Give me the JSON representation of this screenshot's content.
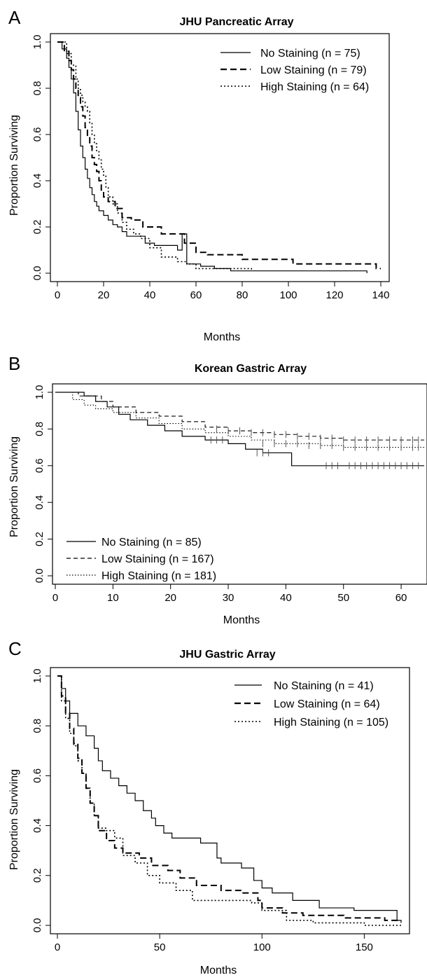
{
  "chart_data": [
    {
      "type": "line",
      "panel_label": "A",
      "title": "JHU Pancreatic Array",
      "xlabel": "Months",
      "ylabel": "Proportion Surviving",
      "xlim": [
        0,
        140
      ],
      "ylim": [
        0,
        1
      ],
      "xticks": [
        0,
        20,
        40,
        60,
        80,
        100,
        120,
        140
      ],
      "yticks": [
        0.0,
        0.2,
        0.4,
        0.6,
        0.8,
        1.0
      ],
      "xtick_labels": [
        "0",
        "20",
        "40",
        "60",
        "80",
        "100",
        "120",
        "140"
      ],
      "ytick_labels": [
        "0.0",
        "0.2",
        "0.4",
        "0.6",
        "0.8",
        "1.0"
      ],
      "legend_position": "top-right",
      "series": [
        {
          "name": "No Staining (n = 75)",
          "style": "solid",
          "x": [
            0,
            2,
            4,
            5,
            6,
            7,
            8,
            9,
            10,
            11,
            12,
            13,
            14,
            15,
            16,
            17,
            18,
            20,
            22,
            24,
            26,
            28,
            30,
            32,
            38,
            42,
            45,
            52,
            54,
            56,
            62,
            68,
            75,
            134
          ],
          "y": [
            1.0,
            0.97,
            0.93,
            0.89,
            0.84,
            0.78,
            0.7,
            0.62,
            0.55,
            0.5,
            0.45,
            0.41,
            0.37,
            0.34,
            0.31,
            0.29,
            0.27,
            0.25,
            0.23,
            0.21,
            0.2,
            0.18,
            0.16,
            0.16,
            0.13,
            0.12,
            0.12,
            0.1,
            0.17,
            0.04,
            0.03,
            0.02,
            0.01,
            0.0
          ]
        },
        {
          "name": "Low Staining (n = 79)",
          "style": "dashed",
          "x": [
            0,
            3,
            5,
            6,
            7,
            8,
            9,
            10,
            11,
            12,
            13,
            14,
            15,
            16,
            17,
            18,
            19,
            20,
            22,
            25,
            28,
            32,
            37,
            45,
            55,
            60,
            65,
            80,
            102,
            138,
            140
          ],
          "y": [
            1.0,
            0.96,
            0.92,
            0.88,
            0.84,
            0.8,
            0.76,
            0.72,
            0.68,
            0.63,
            0.59,
            0.55,
            0.5,
            0.47,
            0.44,
            0.4,
            0.36,
            0.33,
            0.31,
            0.28,
            0.24,
            0.23,
            0.2,
            0.17,
            0.13,
            0.09,
            0.08,
            0.06,
            0.04,
            0.02,
            0.02
          ]
        },
        {
          "name": "High Staining (n = 64)",
          "style": "dotted",
          "x": [
            0,
            4,
            6,
            8,
            9,
            10,
            11,
            12,
            13,
            14,
            15,
            16,
            17,
            18,
            19,
            20,
            21,
            22,
            24,
            26,
            28,
            30,
            33,
            36,
            40,
            45,
            52,
            56,
            60,
            64,
            84
          ],
          "y": [
            1.0,
            0.95,
            0.9,
            0.84,
            0.8,
            0.77,
            0.74,
            0.72,
            0.7,
            0.65,
            0.6,
            0.56,
            0.53,
            0.49,
            0.45,
            0.42,
            0.37,
            0.33,
            0.3,
            0.26,
            0.22,
            0.19,
            0.17,
            0.15,
            0.11,
            0.07,
            0.05,
            0.04,
            0.02,
            0.02,
            0.01
          ]
        }
      ]
    },
    {
      "type": "line",
      "panel_label": "B",
      "title": "Korean Gastric Array",
      "xlabel": "Months",
      "ylabel": "Proportion Surviving",
      "xlim": [
        0,
        64
      ],
      "ylim": [
        0,
        1
      ],
      "xticks": [
        0,
        10,
        20,
        30,
        40,
        50,
        60
      ],
      "yticks": [
        0.0,
        0.2,
        0.4,
        0.6,
        0.8,
        1.0
      ],
      "xtick_labels": [
        "0",
        "10",
        "20",
        "30",
        "40",
        "50",
        "60"
      ],
      "ytick_labels": [
        "0.0",
        "0.2",
        "0.4",
        "0.6",
        "0.8",
        "1.0"
      ],
      "legend_position": "bottom-left",
      "series": [
        {
          "name": "No Staining (n = 85)",
          "style": "solid",
          "x": [
            0,
            5,
            7,
            9,
            11,
            13,
            16,
            19,
            22,
            26,
            30,
            33,
            36,
            41,
            64
          ],
          "y": [
            1.0,
            0.98,
            0.95,
            0.92,
            0.88,
            0.85,
            0.82,
            0.79,
            0.76,
            0.74,
            0.72,
            0.69,
            0.67,
            0.6,
            0.6
          ],
          "censor_x": [
            27,
            28,
            29,
            35,
            36,
            37,
            47,
            48,
            49,
            51,
            52,
            53,
            54,
            55,
            56,
            57,
            58,
            59,
            60,
            61,
            62,
            63
          ],
          "censor_y": [
            0.74,
            0.74,
            0.74,
            0.67,
            0.67,
            0.67,
            0.6,
            0.6,
            0.6,
            0.6,
            0.6,
            0.6,
            0.6,
            0.6,
            0.6,
            0.6,
            0.6,
            0.6,
            0.6,
            0.6,
            0.6,
            0.6
          ]
        },
        {
          "name": "Low Staining (n = 167)",
          "style": "dashed",
          "x": [
            0,
            4,
            8,
            10,
            14,
            18,
            22,
            26,
            30,
            34,
            38,
            42,
            46,
            50,
            64
          ],
          "y": [
            1.0,
            0.98,
            0.95,
            0.92,
            0.89,
            0.87,
            0.84,
            0.81,
            0.79,
            0.78,
            0.77,
            0.76,
            0.75,
            0.74,
            0.74
          ],
          "censor_x": [
            28,
            30,
            32,
            34,
            36,
            38,
            40,
            42,
            44,
            46,
            48,
            50,
            52,
            54,
            56,
            58,
            60,
            62,
            63
          ],
          "censor_y": [
            0.8,
            0.79,
            0.79,
            0.78,
            0.78,
            0.77,
            0.77,
            0.76,
            0.76,
            0.75,
            0.75,
            0.74,
            0.74,
            0.74,
            0.74,
            0.74,
            0.74,
            0.74,
            0.74
          ]
        },
        {
          "name": "High Staining (n = 181)",
          "style": "dotted",
          "x": [
            0,
            3,
            5,
            7,
            10,
            14,
            18,
            22,
            26,
            30,
            34,
            38,
            42,
            46,
            50,
            64
          ],
          "y": [
            1.0,
            0.96,
            0.93,
            0.91,
            0.89,
            0.86,
            0.83,
            0.8,
            0.78,
            0.76,
            0.74,
            0.72,
            0.72,
            0.71,
            0.7,
            0.7
          ],
          "censor_x": [
            36,
            38,
            40,
            42,
            44,
            46,
            48,
            50,
            52,
            54,
            56,
            58,
            60,
            62,
            63
          ],
          "censor_y": [
            0.72,
            0.72,
            0.72,
            0.72,
            0.71,
            0.71,
            0.71,
            0.7,
            0.7,
            0.7,
            0.7,
            0.7,
            0.7,
            0.7,
            0.7
          ]
        }
      ]
    },
    {
      "type": "line",
      "panel_label": "C",
      "title": "JHU Gastric Array",
      "xlabel": "Months",
      "ylabel": "Proportion Surviving",
      "xlim": [
        0,
        168
      ],
      "ylim": [
        0,
        1
      ],
      "xticks": [
        0,
        50,
        100,
        150
      ],
      "yticks": [
        0.0,
        0.2,
        0.4,
        0.6,
        0.8,
        1.0
      ],
      "xtick_labels": [
        "0",
        "50",
        "100",
        "150"
      ],
      "ytick_labels": [
        "0.0",
        "0.2",
        "0.4",
        "0.6",
        "0.8",
        "1.0"
      ],
      "legend_position": "top-right",
      "series": [
        {
          "name": "No Staining (n = 41)",
          "style": "solid",
          "x": [
            0,
            2,
            4,
            6,
            10,
            14,
            18,
            20,
            22,
            26,
            30,
            34,
            38,
            42,
            46,
            48,
            52,
            56,
            62,
            70,
            78,
            80,
            90,
            96,
            100,
            105,
            115,
            128,
            145,
            166,
            168
          ],
          "y": [
            1.0,
            0.95,
            0.9,
            0.85,
            0.8,
            0.76,
            0.71,
            0.66,
            0.62,
            0.59,
            0.56,
            0.53,
            0.5,
            0.46,
            0.43,
            0.4,
            0.37,
            0.35,
            0.35,
            0.33,
            0.27,
            0.25,
            0.23,
            0.18,
            0.15,
            0.13,
            0.1,
            0.07,
            0.06,
            0.02,
            0.01
          ]
        },
        {
          "name": "Low Staining (n = 64)",
          "style": "dashed",
          "x": [
            0,
            2,
            4,
            6,
            8,
            10,
            12,
            14,
            16,
            18,
            20,
            24,
            28,
            32,
            40,
            46,
            54,
            60,
            68,
            80,
            90,
            98,
            100,
            110,
            120,
            140,
            160,
            168
          ],
          "y": [
            1.0,
            0.92,
            0.85,
            0.79,
            0.73,
            0.67,
            0.61,
            0.55,
            0.49,
            0.44,
            0.38,
            0.34,
            0.31,
            0.29,
            0.27,
            0.24,
            0.22,
            0.19,
            0.16,
            0.14,
            0.13,
            0.1,
            0.07,
            0.05,
            0.04,
            0.03,
            0.02,
            0.02
          ]
        },
        {
          "name": "High Staining (n = 105)",
          "style": "dotted",
          "x": [
            0,
            2,
            4,
            6,
            8,
            10,
            12,
            14,
            16,
            18,
            20,
            24,
            28,
            32,
            38,
            44,
            50,
            58,
            66,
            80,
            95,
            100,
            112,
            125,
            150,
            168
          ],
          "y": [
            1.0,
            0.9,
            0.83,
            0.77,
            0.72,
            0.66,
            0.61,
            0.55,
            0.49,
            0.44,
            0.39,
            0.38,
            0.35,
            0.28,
            0.25,
            0.2,
            0.17,
            0.14,
            0.1,
            0.1,
            0.09,
            0.06,
            0.02,
            0.01,
            0.0,
            0.0
          ]
        }
      ]
    }
  ]
}
